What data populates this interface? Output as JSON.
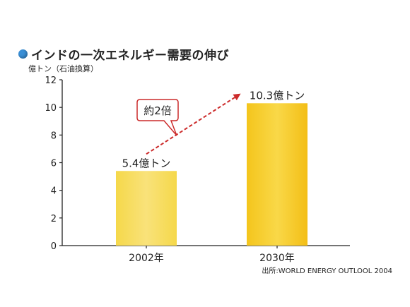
{
  "chart_data": {
    "type": "bar",
    "title": "インドの一次エネルギー需要の伸び",
    "ylabel": "億トン（石油換算）",
    "xlabel": "",
    "categories": [
      "2002年",
      "2030年"
    ],
    "values": [
      5.4,
      10.3
    ],
    "data_labels": [
      "5.4億トン",
      "10.3億トン"
    ],
    "ylim": [
      0,
      12
    ],
    "yticks": [
      0,
      2,
      4,
      6,
      8,
      10,
      12
    ],
    "ytick_labels": [
      "0",
      "2",
      "4",
      "6",
      "8",
      "10",
      "12"
    ],
    "annotation": "約2倍",
    "source": "出所:WORLD ENERGY OUTLOOL 2004",
    "grid": false,
    "colors": {
      "bar_2002": "#f7e27a",
      "bar_2030": "#f2c31f",
      "bar_2030_top": "#f9dd50",
      "arrow": "#cc2b2b",
      "callout_border": "#cc2b2b",
      "title_bullet": "#3a8fd6",
      "axis": "#222222"
    }
  }
}
